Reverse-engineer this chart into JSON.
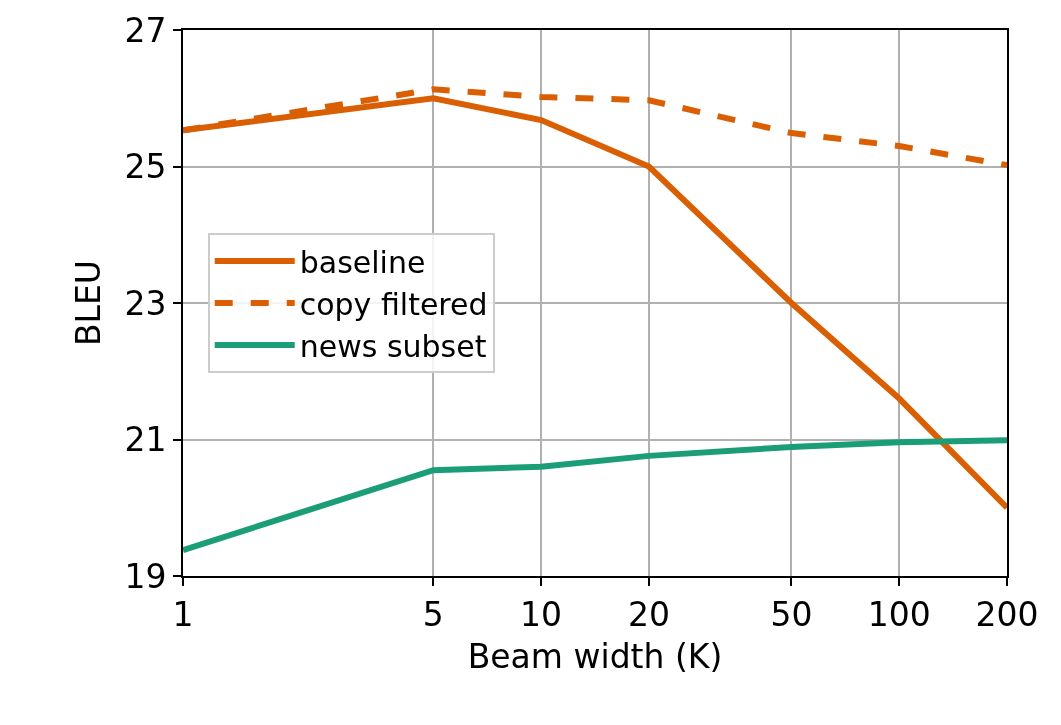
{
  "chart_data": {
    "type": "line",
    "xlabel": "Beam width (K)",
    "ylabel": "BLEU",
    "x": [
      1,
      5,
      10,
      20,
      50,
      100,
      200
    ],
    "series": [
      {
        "name": "baseline",
        "color": "#d95f02",
        "line_style": "solid",
        "values": [
          25.53,
          26.0,
          25.68,
          25.0,
          23.0,
          21.6,
          20.0
        ]
      },
      {
        "name": "copy filtered",
        "color": "#d95f02",
        "line_style": "dashed",
        "values": [
          25.53,
          26.13,
          26.02,
          25.97,
          25.49,
          25.3,
          25.02
        ]
      },
      {
        "name": "news subset",
        "color": "#1b9e77",
        "line_style": "solid",
        "values": [
          19.38,
          20.55,
          20.6,
          20.76,
          20.89,
          20.96,
          20.99
        ]
      }
    ],
    "xlim": [
      1,
      200
    ],
    "ylim": [
      19,
      27
    ],
    "xticks": [
      1,
      5,
      10,
      20,
      50,
      100,
      200
    ],
    "yticks": [
      19,
      21,
      23,
      25,
      27
    ],
    "log": "x",
    "grid": true,
    "legend": "left",
    "marker": "none"
  }
}
